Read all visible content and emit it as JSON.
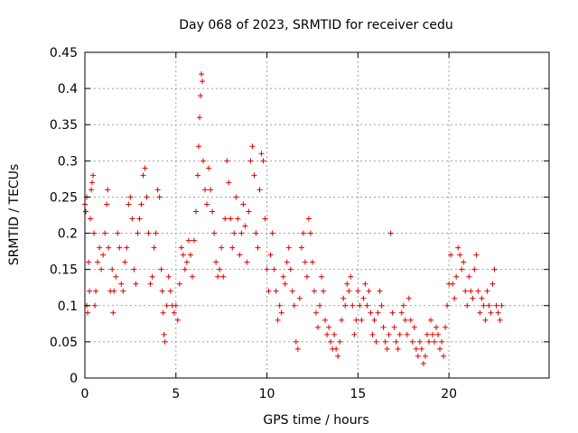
{
  "chart_data": {
    "type": "scatter",
    "title": "Day 068 of 2023, SRMTID for receiver cedu",
    "xlabel": "GPS time / hours",
    "ylabel": "SRMTID / TECUs",
    "xlim": [
      0,
      25.5
    ],
    "ylim": [
      0,
      0.45
    ],
    "xticks": [
      0,
      5,
      10,
      15,
      20
    ],
    "xtick_labels": [
      "0",
      "5",
      "10",
      "15",
      "20"
    ],
    "yticks": [
      0,
      0.05,
      0.1,
      0.15,
      0.2,
      0.25,
      0.3,
      0.35,
      0.4,
      0.45
    ],
    "ytick_labels": [
      "0",
      "0.05",
      "0.1",
      "0.15",
      "0.2",
      "0.25",
      "0.3",
      "0.35",
      "0.4",
      "0.45"
    ],
    "grid": true,
    "marker": "plus",
    "color": "#e00000",
    "series": [
      {
        "name": "SRMTID",
        "points": [
          [
            0.0,
            0.24
          ],
          [
            0.05,
            0.23
          ],
          [
            0.1,
            0.25
          ],
          [
            0.1,
            0.1
          ],
          [
            0.15,
            0.09
          ],
          [
            0.2,
            0.16
          ],
          [
            0.25,
            0.12
          ],
          [
            0.3,
            0.22
          ],
          [
            0.35,
            0.26
          ],
          [
            0.4,
            0.27
          ],
          [
            0.45,
            0.28
          ],
          [
            0.5,
            0.2
          ],
          [
            0.55,
            0.1
          ],
          [
            0.6,
            0.12
          ],
          [
            0.7,
            0.16
          ],
          [
            0.8,
            0.18
          ],
          [
            0.9,
            0.15
          ],
          [
            1.0,
            0.17
          ],
          [
            1.1,
            0.2
          ],
          [
            1.2,
            0.24
          ],
          [
            1.25,
            0.26
          ],
          [
            1.3,
            0.18
          ],
          [
            1.4,
            0.12
          ],
          [
            1.5,
            0.15
          ],
          [
            1.55,
            0.09
          ],
          [
            1.6,
            0.12
          ],
          [
            1.7,
            0.14
          ],
          [
            1.8,
            0.2
          ],
          [
            1.9,
            0.18
          ],
          [
            2.0,
            0.13
          ],
          [
            2.1,
            0.12
          ],
          [
            2.2,
            0.16
          ],
          [
            2.3,
            0.18
          ],
          [
            2.4,
            0.24
          ],
          [
            2.5,
            0.25
          ],
          [
            2.6,
            0.22
          ],
          [
            2.7,
            0.15
          ],
          [
            2.8,
            0.13
          ],
          [
            2.9,
            0.2
          ],
          [
            3.0,
            0.22
          ],
          [
            3.1,
            0.24
          ],
          [
            3.2,
            0.28
          ],
          [
            3.3,
            0.29
          ],
          [
            3.4,
            0.25
          ],
          [
            3.5,
            0.2
          ],
          [
            3.6,
            0.13
          ],
          [
            3.7,
            0.14
          ],
          [
            3.8,
            0.18
          ],
          [
            3.9,
            0.2
          ],
          [
            4.0,
            0.26
          ],
          [
            4.1,
            0.25
          ],
          [
            4.2,
            0.15
          ],
          [
            4.25,
            0.12
          ],
          [
            4.3,
            0.09
          ],
          [
            4.35,
            0.06
          ],
          [
            4.4,
            0.05
          ],
          [
            4.5,
            0.1
          ],
          [
            4.6,
            0.14
          ],
          [
            4.7,
            0.12
          ],
          [
            4.8,
            0.1
          ],
          [
            4.9,
            0.09
          ],
          [
            5.0,
            0.1
          ],
          [
            5.1,
            0.08
          ],
          [
            5.2,
            0.13
          ],
          [
            5.3,
            0.18
          ],
          [
            5.4,
            0.17
          ],
          [
            5.5,
            0.15
          ],
          [
            5.6,
            0.16
          ],
          [
            5.7,
            0.19
          ],
          [
            5.8,
            0.17
          ],
          [
            5.9,
            0.14
          ],
          [
            6.0,
            0.19
          ],
          [
            6.1,
            0.23
          ],
          [
            6.2,
            0.28
          ],
          [
            6.25,
            0.32
          ],
          [
            6.3,
            0.36
          ],
          [
            6.35,
            0.39
          ],
          [
            6.4,
            0.42
          ],
          [
            6.45,
            0.41
          ],
          [
            6.5,
            0.3
          ],
          [
            6.6,
            0.26
          ],
          [
            6.7,
            0.24
          ],
          [
            6.8,
            0.29
          ],
          [
            6.9,
            0.26
          ],
          [
            7.0,
            0.23
          ],
          [
            7.1,
            0.2
          ],
          [
            7.2,
            0.16
          ],
          [
            7.3,
            0.14
          ],
          [
            7.4,
            0.15
          ],
          [
            7.5,
            0.18
          ],
          [
            7.6,
            0.14
          ],
          [
            7.7,
            0.22
          ],
          [
            7.8,
            0.3
          ],
          [
            7.9,
            0.27
          ],
          [
            8.0,
            0.22
          ],
          [
            8.1,
            0.18
          ],
          [
            8.2,
            0.2
          ],
          [
            8.3,
            0.25
          ],
          [
            8.4,
            0.22
          ],
          [
            8.5,
            0.17
          ],
          [
            8.6,
            0.2
          ],
          [
            8.7,
            0.24
          ],
          [
            8.8,
            0.21
          ],
          [
            8.9,
            0.16
          ],
          [
            9.0,
            0.23
          ],
          [
            9.1,
            0.3
          ],
          [
            9.2,
            0.32
          ],
          [
            9.3,
            0.28
          ],
          [
            9.4,
            0.2
          ],
          [
            9.5,
            0.18
          ],
          [
            9.6,
            0.26
          ],
          [
            9.7,
            0.31
          ],
          [
            9.8,
            0.3
          ],
          [
            9.9,
            0.22
          ],
          [
            10.0,
            0.15
          ],
          [
            10.1,
            0.12
          ],
          [
            10.2,
            0.17
          ],
          [
            10.3,
            0.2
          ],
          [
            10.4,
            0.15
          ],
          [
            10.5,
            0.12
          ],
          [
            10.6,
            0.08
          ],
          [
            10.7,
            0.1
          ],
          [
            10.8,
            0.09
          ],
          [
            10.9,
            0.14
          ],
          [
            11.0,
            0.13
          ],
          [
            11.1,
            0.16
          ],
          [
            11.2,
            0.18
          ],
          [
            11.3,
            0.15
          ],
          [
            11.4,
            0.12
          ],
          [
            11.5,
            0.1
          ],
          [
            11.6,
            0.05
          ],
          [
            11.7,
            0.04
          ],
          [
            11.8,
            0.11
          ],
          [
            11.9,
            0.18
          ],
          [
            12.0,
            0.2
          ],
          [
            12.1,
            0.16
          ],
          [
            12.2,
            0.14
          ],
          [
            12.3,
            0.22
          ],
          [
            12.4,
            0.2
          ],
          [
            12.5,
            0.16
          ],
          [
            12.6,
            0.12
          ],
          [
            12.7,
            0.09
          ],
          [
            12.8,
            0.07
          ],
          [
            12.9,
            0.1
          ],
          [
            13.0,
            0.14
          ],
          [
            13.1,
            0.12
          ],
          [
            13.2,
            0.08
          ],
          [
            13.3,
            0.06
          ],
          [
            13.4,
            0.07
          ],
          [
            13.5,
            0.05
          ],
          [
            13.6,
            0.04
          ],
          [
            13.7,
            0.06
          ],
          [
            13.8,
            0.04
          ],
          [
            13.9,
            0.03
          ],
          [
            14.0,
            0.05
          ],
          [
            14.1,
            0.08
          ],
          [
            14.2,
            0.11
          ],
          [
            14.3,
            0.1
          ],
          [
            14.4,
            0.13
          ],
          [
            14.5,
            0.12
          ],
          [
            14.6,
            0.14
          ],
          [
            14.7,
            0.1
          ],
          [
            14.8,
            0.06
          ],
          [
            14.9,
            0.08
          ],
          [
            15.0,
            0.12
          ],
          [
            15.1,
            0.1
          ],
          [
            15.2,
            0.08
          ],
          [
            15.3,
            0.11
          ],
          [
            15.4,
            0.13
          ],
          [
            15.5,
            0.1
          ],
          [
            15.6,
            0.12
          ],
          [
            15.7,
            0.09
          ],
          [
            15.8,
            0.06
          ],
          [
            15.9,
            0.08
          ],
          [
            16.0,
            0.05
          ],
          [
            16.1,
            0.09
          ],
          [
            16.2,
            0.12
          ],
          [
            16.3,
            0.1
          ],
          [
            16.4,
            0.07
          ],
          [
            16.5,
            0.05
          ],
          [
            16.6,
            0.04
          ],
          [
            16.7,
            0.06
          ],
          [
            16.8,
            0.2
          ],
          [
            16.9,
            0.09
          ],
          [
            17.0,
            0.07
          ],
          [
            17.1,
            0.05
          ],
          [
            17.2,
            0.04
          ],
          [
            17.3,
            0.06
          ],
          [
            17.4,
            0.09
          ],
          [
            17.5,
            0.1
          ],
          [
            17.6,
            0.08
          ],
          [
            17.7,
            0.06
          ],
          [
            17.8,
            0.11
          ],
          [
            17.9,
            0.08
          ],
          [
            18.0,
            0.05
          ],
          [
            18.1,
            0.07
          ],
          [
            18.2,
            0.04
          ],
          [
            18.3,
            0.03
          ],
          [
            18.4,
            0.05
          ],
          [
            18.5,
            0.04
          ],
          [
            18.6,
            0.02
          ],
          [
            18.7,
            0.03
          ],
          [
            18.8,
            0.06
          ],
          [
            18.9,
            0.05
          ],
          [
            19.0,
            0.08
          ],
          [
            19.1,
            0.06
          ],
          [
            19.2,
            0.05
          ],
          [
            19.3,
            0.07
          ],
          [
            19.4,
            0.06
          ],
          [
            19.5,
            0.04
          ],
          [
            19.6,
            0.05
          ],
          [
            19.7,
            0.03
          ],
          [
            19.8,
            0.07
          ],
          [
            19.9,
            0.1
          ],
          [
            20.0,
            0.13
          ],
          [
            20.1,
            0.17
          ],
          [
            20.2,
            0.13
          ],
          [
            20.3,
            0.11
          ],
          [
            20.4,
            0.14
          ],
          [
            20.5,
            0.18
          ],
          [
            20.6,
            0.17
          ],
          [
            20.7,
            0.15
          ],
          [
            20.8,
            0.16
          ],
          [
            20.9,
            0.12
          ],
          [
            21.0,
            0.1
          ],
          [
            21.1,
            0.14
          ],
          [
            21.2,
            0.12
          ],
          [
            21.3,
            0.11
          ],
          [
            21.4,
            0.15
          ],
          [
            21.5,
            0.17
          ],
          [
            21.6,
            0.12
          ],
          [
            21.7,
            0.09
          ],
          [
            21.8,
            0.11
          ],
          [
            21.9,
            0.1
          ],
          [
            22.0,
            0.08
          ],
          [
            22.1,
            0.12
          ],
          [
            22.2,
            0.1
          ],
          [
            22.3,
            0.09
          ],
          [
            22.4,
            0.13
          ],
          [
            22.5,
            0.15
          ],
          [
            22.6,
            0.1
          ],
          [
            22.7,
            0.09
          ],
          [
            22.8,
            0.08
          ],
          [
            22.9,
            0.1
          ]
        ]
      }
    ]
  }
}
